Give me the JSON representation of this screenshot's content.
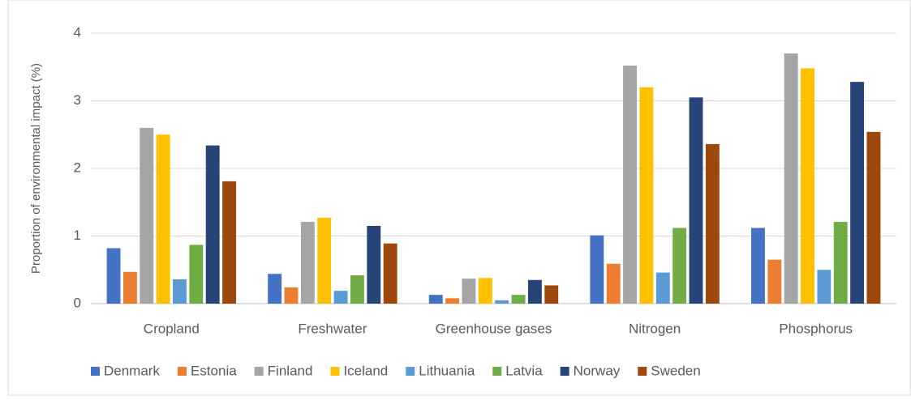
{
  "chart_data": {
    "type": "bar",
    "y_label": "Proportion of environmental impact (%)",
    "categories": [
      "Cropland",
      "Freshwater",
      "Greenhouse gases",
      "Nitrogen",
      "Phosphorus"
    ],
    "series": [
      {
        "name": "Denmark",
        "color": "#4472c4",
        "values": [
          0.82,
          0.44,
          0.13,
          1.01,
          1.12
        ]
      },
      {
        "name": "Estonia",
        "color": "#ed7d31",
        "values": [
          0.47,
          0.24,
          0.08,
          0.59,
          0.65
        ]
      },
      {
        "name": "Finland",
        "color": "#a5a5a5",
        "values": [
          2.6,
          1.21,
          0.37,
          3.52,
          3.7
        ]
      },
      {
        "name": "Iceland",
        "color": "#ffc000",
        "values": [
          2.5,
          1.27,
          0.38,
          3.2,
          3.48
        ]
      },
      {
        "name": "Lithuania",
        "color": "#5b9bd5",
        "values": [
          0.36,
          0.19,
          0.05,
          0.46,
          0.5
        ]
      },
      {
        "name": "Latvia",
        "color": "#70ad47",
        "values": [
          0.87,
          0.42,
          0.13,
          1.12,
          1.21
        ]
      },
      {
        "name": "Norway",
        "color": "#264478",
        "values": [
          2.34,
          1.15,
          0.35,
          3.05,
          3.28
        ]
      },
      {
        "name": "Sweden",
        "color": "#9e480e",
        "values": [
          1.81,
          0.89,
          0.27,
          2.36,
          2.54
        ]
      }
    ],
    "ylim": [
      0,
      4
    ],
    "yticks": [
      0,
      1,
      2,
      3,
      4
    ],
    "grid": true,
    "legend": "bottom"
  }
}
